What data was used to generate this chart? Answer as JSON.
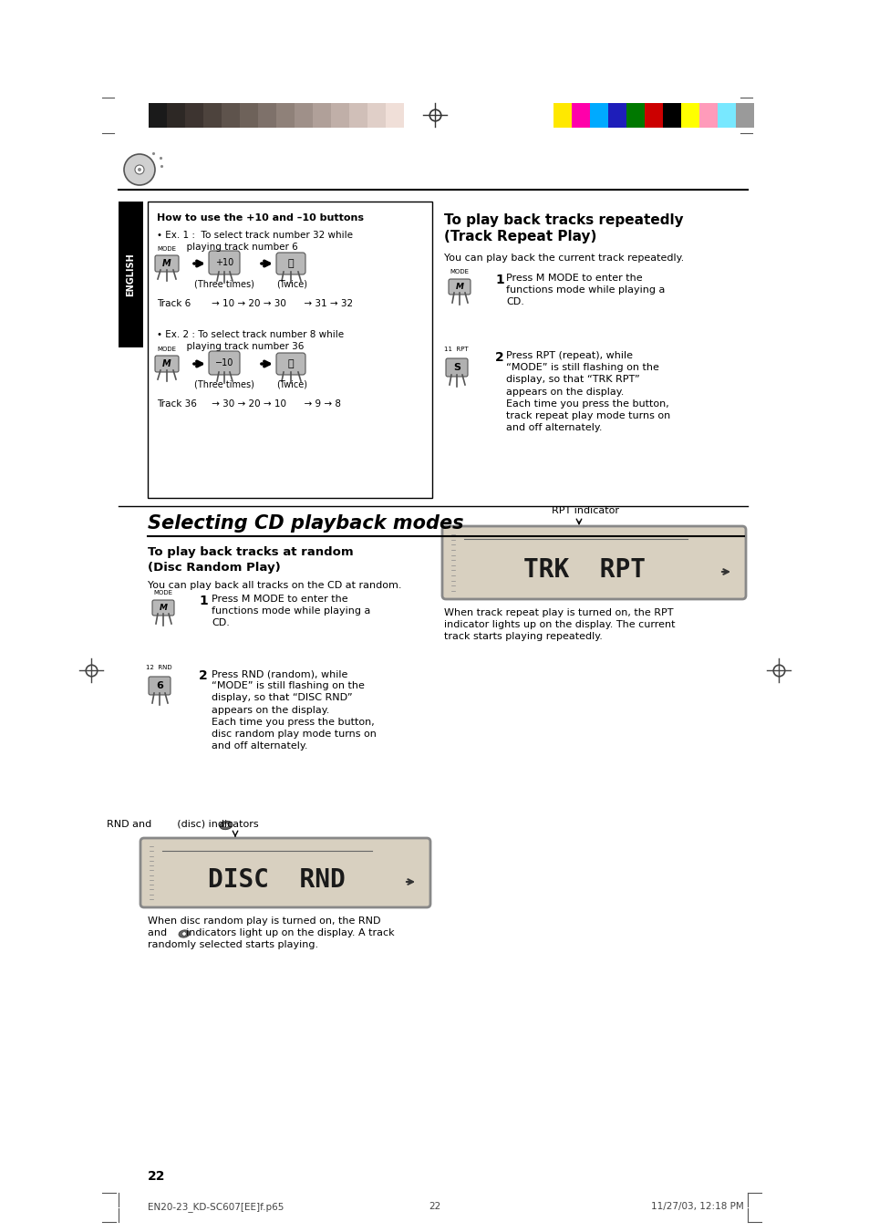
{
  "page_bg": "#ffffff",
  "page_width": 9.54,
  "page_height": 13.51,
  "dpi": 100,
  "color_bar_left_colors": [
    "#1a1a1a",
    "#2d2825",
    "#3d3430",
    "#4d433d",
    "#5e534c",
    "#6e625a",
    "#7e716a",
    "#8f8179",
    "#9f9089",
    "#b0a099",
    "#c0afa8",
    "#d0bfb8",
    "#e0cfc8",
    "#f0dfd8",
    "#ffffff"
  ],
  "color_bar_right_colors": [
    "#ffe800",
    "#ff00aa",
    "#00aaff",
    "#1e1eba",
    "#007800",
    "#cc0000",
    "#000000",
    "#ffff00",
    "#ff9bba",
    "#78e8ff",
    "#9a9a9a"
  ],
  "english_label": "ENGLISH",
  "how_to_use_title": "How to use the +10 and –10 buttons",
  "three_times": "(Three times)",
  "twice": "(Twice)",
  "ex1_line1": "• Ex. 1 :  To select track number 32 while",
  "ex1_line2": "          playing track number 6",
  "ex1_track": "Track 6       → 10 → 20 → 30      → 31 → 32",
  "ex2_line1": "• Ex. 2 : To select track number 8 while",
  "ex2_line2": "          playing track number 36",
  "ex2_track": "Track 36     → 30 → 20 → 10      → 9 → 8",
  "section_title": "Selecting CD playback modes",
  "disc_random_title_line1": "To play back tracks at random",
  "disc_random_title_line2": "(Disc Random Play)",
  "disc_random_body": "You can play back all tracks on the CD at random.",
  "disc_step1": "Press M MODE to enter the\nfunctions mode while playing a\nCD.",
  "disc_step2": "Press RND (random), while\n“MODE” is still flashing on the\ndisplay, so that “DISC RND”\nappears on the display.\nEach time you press the button,\ndisc random play mode turns on\nand off alternately.",
  "rnd_indicators_label": "RND and        (disc) indicators",
  "disc_display_text": "DISC  RND",
  "disc_footer_line1": "When disc random play is turned on, the RND",
  "disc_footer_line2": "and      indicators light up on the display. A track",
  "disc_footer_line3": "randomly selected starts playing.",
  "trk_title_line1": "To play back tracks repeatedly",
  "trk_title_line2": "(Track Repeat Play)",
  "trk_body": "You can play back the current track repeatedly.",
  "trk_step1": "Press M MODE to enter the\nfunctions mode while playing a\nCD.",
  "trk_step2": "Press RPT (repeat), while\n“MODE” is still flashing on the\ndisplay, so that “TRK RPT”\nappears on the display.\nEach time you press the button,\ntrack repeat play mode turns on\nand off alternately.",
  "rpt_indicator_label": "RPT indicator",
  "trk_display_text": "TRK  RPT",
  "trk_footer_line1": "When track repeat play is turned on, the RPT",
  "trk_footer_line2": "indicator lights up on the display. The current",
  "trk_footer_line3": "track starts playing repeatedly.",
  "page_number": "22",
  "footer_left": "EN20-23_KD-SC607[EE]f.p65",
  "footer_center": "22",
  "footer_right": "11/27/03, 12:18 PM"
}
